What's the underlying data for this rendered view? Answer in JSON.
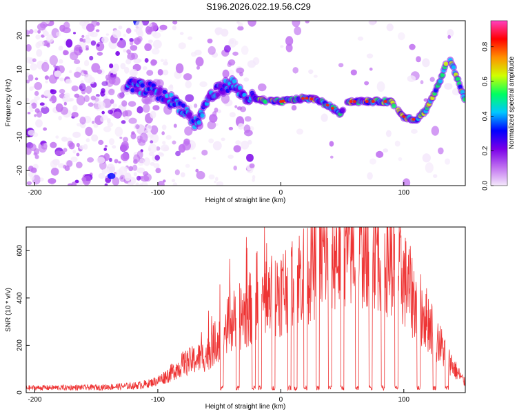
{
  "title": "S196.2026.022.19.56.C29",
  "chart_data": [
    {
      "type": "heatmap",
      "title": "S196.2026.022.19.56.C29",
      "xlabel": "Height of straight line (km)",
      "ylabel": "Frequency (Hz)",
      "xlim": [
        -207,
        150
      ],
      "ylim": [
        -24.5,
        24.5
      ],
      "xticks": [
        -200,
        -100,
        0,
        100
      ],
      "xtick_labels": [
        "-200",
        "-100",
        "0",
        "100"
      ],
      "yticks": [
        -20,
        -10,
        0,
        10,
        20
      ],
      "ytick_labels": [
        "-20",
        "-10",
        "0",
        "10",
        "20"
      ],
      "colorbar": {
        "label": "Normalized spectral amplitude",
        "range": [
          0.0,
          0.95
        ],
        "ticks": [
          0.0,
          0.2,
          0.4,
          0.6,
          0.8
        ],
        "tick_labels": [
          "0.0",
          "0.2",
          "0.4",
          "0.6",
          "0.8"
        ],
        "colors": [
          "#f4e8fb",
          "#c070f0",
          "#7a00e8",
          "#0000ff",
          "#00c8ff",
          "#00ff60",
          "#d0ff00",
          "#ff9000",
          "#ff0000",
          "#ff40c0"
        ]
      },
      "ridge": {
        "x": [
          -120,
          -105,
          -95,
          -85,
          -78,
          -70,
          -65,
          -60,
          -50,
          -40,
          -30,
          -20,
          -10,
          0,
          10,
          20,
          30,
          40,
          48,
          55,
          70,
          80,
          90,
          95,
          100,
          110,
          118,
          125,
          130,
          137,
          150
        ],
        "y": [
          5,
          4,
          2,
          0,
          -2,
          -6,
          -4,
          1,
          4,
          6,
          2,
          1,
          0.5,
          0.5,
          1,
          1.5,
          1,
          -1,
          -3,
          0.5,
          0.5,
          0.5,
          0.5,
          -2,
          -4,
          -5,
          -2,
          3,
          7,
          14,
          0.5
        ]
      }
    },
    {
      "type": "line",
      "xlabel": "Height of straight line (km)",
      "ylabel": "SNR (10 * v/v)",
      "xlim": [
        -207,
        150
      ],
      "ylim": [
        0,
        700
      ],
      "xticks": [
        -200,
        -100,
        0,
        100
      ],
      "xtick_labels": [
        "-200",
        "-100",
        "0",
        "100"
      ],
      "yticks": [
        0,
        200,
        400,
        600
      ],
      "ytick_labels": [
        "0",
        "200",
        "400",
        "600"
      ],
      "color": "#ee3333",
      "envelope": {
        "x": [
          -207,
          -150,
          -120,
          -110,
          -100,
          -90,
          -80,
          -70,
          -60,
          -50,
          -40,
          -30,
          -20,
          -10,
          0,
          10,
          20,
          30,
          40,
          50,
          60,
          70,
          80,
          90,
          100,
          110,
          120,
          130,
          140,
          150
        ],
        "y": [
          20,
          22,
          28,
          35,
          50,
          80,
          120,
          140,
          160,
          240,
          300,
          330,
          380,
          400,
          430,
          480,
          510,
          560,
          590,
          600,
          620,
          640,
          610,
          560,
          480,
          380,
          300,
          200,
          110,
          40
        ]
      },
      "dropouts_x": [
        -48,
        -35,
        -22,
        -17,
        -6,
        7,
        12,
        20,
        30,
        40,
        50,
        62,
        73,
        83,
        94,
        112,
        125,
        135
      ]
    }
  ]
}
